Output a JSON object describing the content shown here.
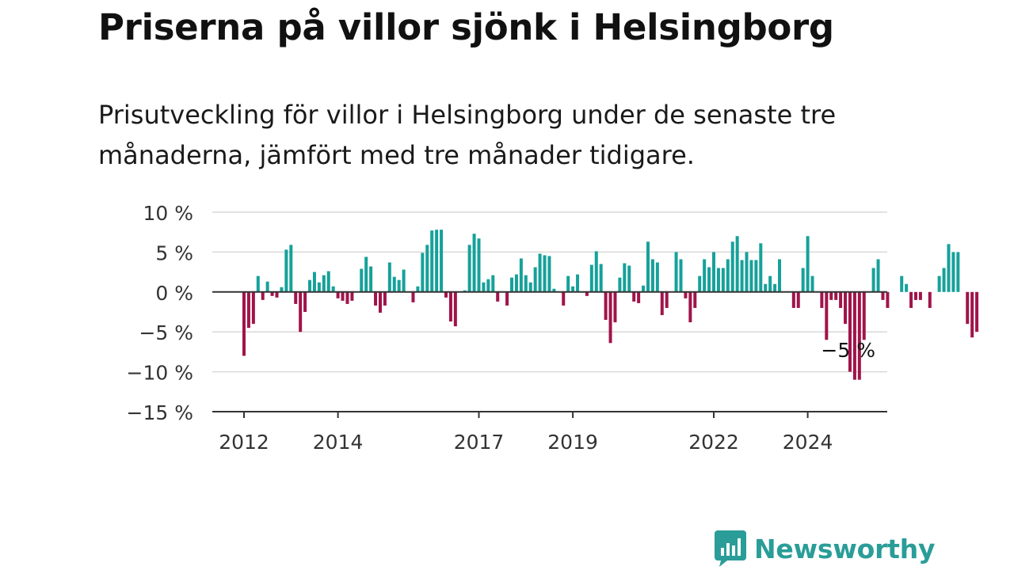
{
  "title": "Priserna på villor sjönk i Helsingborg",
  "subtitle": "Prisutveckling för villor i Helsingborg under de senaste tre månaderna, jämfört med tre månader tidigare.",
  "brand": "Newsworthy",
  "colors": {
    "positive": "#16a19a",
    "negative": "#a0144a",
    "zero_line": "#333333",
    "grid": "#d9d9d9",
    "brand": "#2a9d98"
  },
  "icons": {
    "brand_logo": "bar-chart-speech-bubble-icon"
  },
  "chart_data": {
    "type": "bar",
    "ylim": [
      -15,
      10
    ],
    "yticks": [
      10,
      5,
      0,
      -5,
      -10,
      -15
    ],
    "ytick_labels": [
      "10 %",
      "5 %",
      "0 %",
      "−5 %",
      "−10 %",
      "−15 %"
    ],
    "xtick_labels": [
      "2012",
      "2014",
      "2017",
      "2019",
      "2022",
      "2024"
    ],
    "xtick_positions": [
      0,
      20,
      50,
      70,
      100,
      120
    ],
    "x_start": "2012-01",
    "frequency": "monthly",
    "annotation": {
      "text": "−5 %",
      "index": 129
    },
    "values": [
      -8,
      -4.5,
      -4,
      2,
      -1,
      1.3,
      -0.5,
      -0.7,
      0.6,
      5.3,
      5.9,
      -1.5,
      -5,
      -2.5,
      1.5,
      2.5,
      1.2,
      2.1,
      2.6,
      0.7,
      -0.8,
      -1.1,
      -1.5,
      -1.1,
      0,
      2.9,
      4.4,
      3.2,
      -1.7,
      -2.6,
      -1.7,
      3.7,
      1.9,
      1.5,
      2.8,
      0,
      -1.3,
      0.7,
      4.9,
      5.9,
      7.7,
      7.8,
      7.8,
      -0.7,
      -3.7,
      -4.3,
      0,
      0.2,
      5.9,
      7.3,
      6.7,
      1.2,
      1.6,
      2.1,
      -1.2,
      0,
      -1.7,
      1.8,
      2.2,
      4.2,
      2.1,
      1.2,
      3.1,
      4.8,
      4.6,
      4.5,
      0.4,
      0,
      -1.7,
      2,
      0.7,
      2.2,
      0,
      -0.5,
      3.4,
      5.1,
      3.5,
      -3.5,
      -6.4,
      -3.8,
      1.8,
      3.6,
      3.3,
      -1.2,
      -1.4,
      0.8,
      6.3,
      4.1,
      3.7,
      -2.9,
      -2,
      0,
      5,
      4.1,
      -0.8,
      -3.8,
      -2,
      2,
      4.1,
      3.1,
      5,
      3,
      3,
      4.1,
      6.3,
      7,
      4,
      5,
      4,
      4,
      6.1,
      1,
      2,
      1,
      4.1,
      0,
      0,
      -2,
      -2,
      3,
      7,
      2,
      0,
      -2,
      -6,
      -1,
      -1,
      -2,
      -4,
      -10,
      -11,
      -11,
      -6,
      0,
      3,
      4.1,
      -1,
      -2,
      0,
      0,
      2,
      1,
      -2,
      -1,
      -1,
      0,
      -2,
      0,
      2,
      3,
      6,
      5,
      5,
      0,
      -4,
      -5.7,
      -5
    ]
  }
}
